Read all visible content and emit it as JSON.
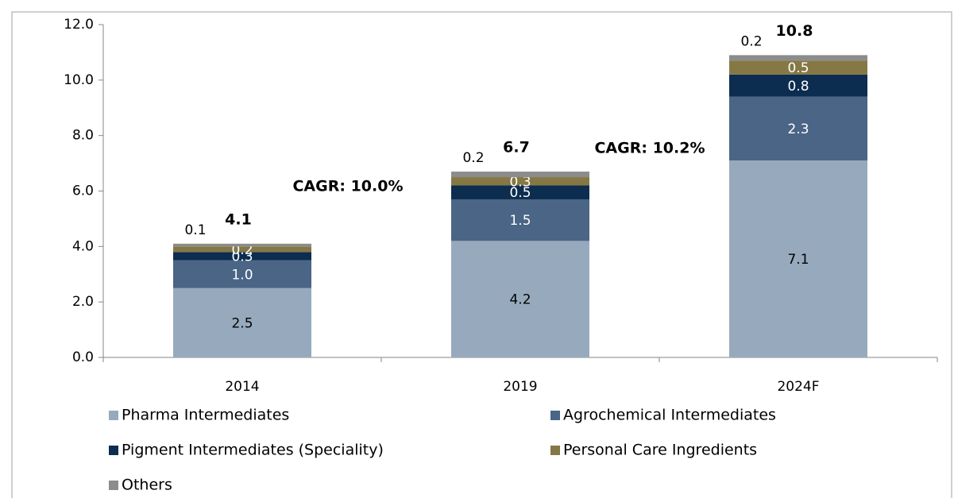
{
  "chart_data": {
    "type": "stacked_bar",
    "categories": [
      "2014",
      "2019",
      "2024F"
    ],
    "series": [
      {
        "name": "Pharma Intermediates",
        "color": "#97aabd",
        "label_color": "#000000",
        "values": [
          2.5,
          4.2,
          7.1
        ],
        "value_labels": [
          "2.5",
          "4.2",
          "7.1"
        ]
      },
      {
        "name": "Agrochemical Intermediates",
        "color": "#4a6585",
        "label_color": "#ffffff",
        "values": [
          1.0,
          1.5,
          2.3
        ],
        "value_labels": [
          "1.0",
          "1.5",
          "2.3"
        ]
      },
      {
        "name": "Pigment Intermediates (Speciality)",
        "color": "#0c2d4f",
        "label_color": "#ffffff",
        "values": [
          0.3,
          0.5,
          0.8
        ],
        "value_labels": [
          "0.3",
          "0.5",
          "0.8"
        ]
      },
      {
        "name": "Personal Care Ingredients",
        "color": "#857845",
        "label_color": "#ffffff",
        "values": [
          0.2,
          0.3,
          0.5
        ],
        "value_labels": [
          "0.2",
          "0.3",
          "0.5"
        ]
      },
      {
        "name": "Others",
        "color": "#8c8c8c",
        "label_color": "#000000",
        "values": [
          0.1,
          0.2,
          0.2
        ],
        "value_labels": [
          "0.1",
          "0.2",
          "0.2"
        ]
      }
    ],
    "totals": [
      4.1,
      6.7,
      10.8
    ],
    "annotations": [
      "CAGR: 10.0%",
      "CAGR: 10.2%"
    ],
    "ylim": [
      0,
      12
    ],
    "yticks": [
      {
        "value": 0,
        "label": "0.0"
      },
      {
        "value": 2,
        "label": "2.0"
      },
      {
        "value": 4,
        "label": "4.0"
      },
      {
        "value": 6,
        "label": "6.0"
      },
      {
        "value": 8,
        "label": "8.0"
      },
      {
        "value": 10,
        "label": "10.0"
      },
      {
        "value": 12,
        "label": "12.0"
      }
    ],
    "grid": false,
    "legend": "bottom"
  }
}
